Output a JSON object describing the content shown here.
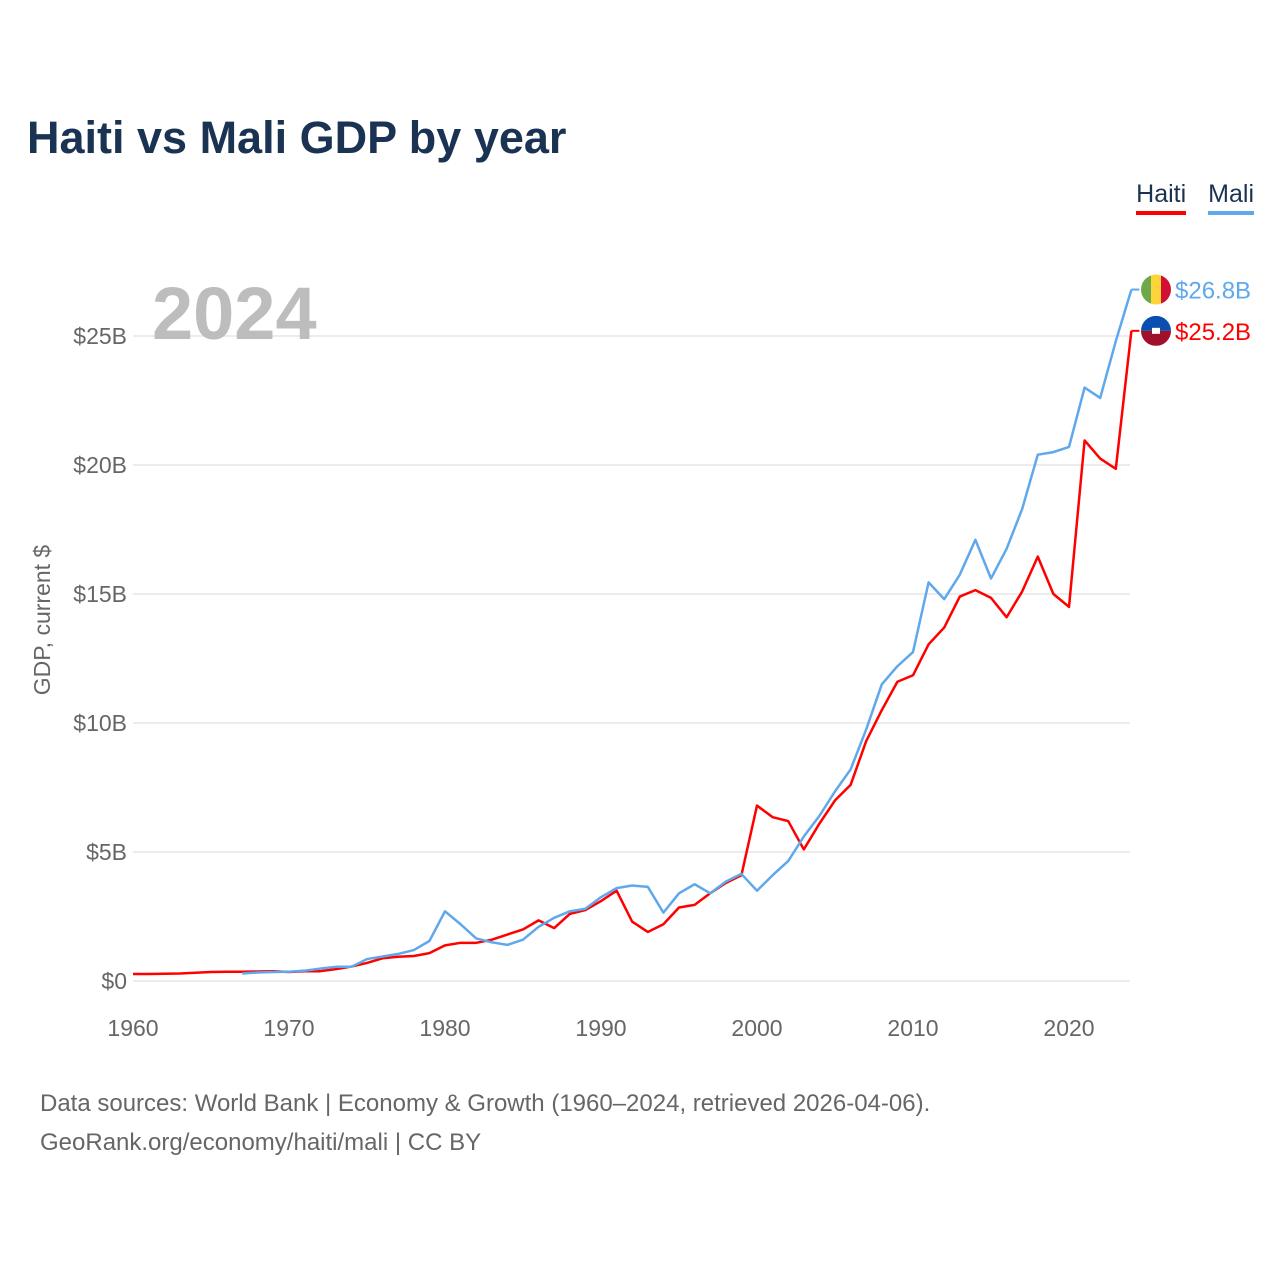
{
  "title": "Haiti vs Mali GDP by year",
  "year_label": "2024",
  "footer": {
    "line1": "Data sources: World Bank | Economy & Growth (1960–2024, retrieved 2026-04-06).",
    "line2": "GeoRank.org/economy/haiti/mali | CC BY"
  },
  "chart_data": {
    "type": "line",
    "title": "Haiti vs Mali GDP by year",
    "xlabel": "",
    "ylabel": "GDP, current $",
    "xlim": [
      1960,
      2024
    ],
    "ylim": [
      0,
      27
    ],
    "grid": true,
    "legend_placement": "top-right",
    "x_ticks": [
      1960,
      1970,
      1980,
      1990,
      2000,
      2010,
      2020
    ],
    "y_ticks": [
      {
        "v": 0,
        "label": "$0"
      },
      {
        "v": 5,
        "label": "$5B"
      },
      {
        "v": 10,
        "label": "$10B"
      },
      {
        "v": 15,
        "label": "$15B"
      },
      {
        "v": 20,
        "label": "$20B"
      },
      {
        "v": 25,
        "label": "$25B"
      }
    ],
    "series": [
      {
        "name": "Haiti",
        "color": "#ff0000",
        "flag": "haiti-flag",
        "end_label": "$25.2B",
        "start_year": 1960,
        "values": [
          0.27,
          0.27,
          0.28,
          0.29,
          0.32,
          0.35,
          0.36,
          0.36,
          0.37,
          0.38,
          0.35,
          0.38,
          0.38,
          0.46,
          0.56,
          0.7,
          0.88,
          0.94,
          0.97,
          1.08,
          1.38,
          1.48,
          1.48,
          1.6,
          1.8,
          2.0,
          2.35,
          2.05,
          2.6,
          2.75,
          3.1,
          3.5,
          2.3,
          1.9,
          2.2,
          2.85,
          2.95,
          3.4,
          3.8,
          4.1,
          6.8,
          6.35,
          6.2,
          5.1,
          6.1,
          7.0,
          7.6,
          9.3,
          10.5,
          11.6,
          11.85,
          13.05,
          13.7,
          14.9,
          15.15,
          14.85,
          14.1,
          15.1,
          16.45,
          15.0,
          14.5,
          20.95,
          20.25,
          19.85,
          25.2
        ]
      },
      {
        "name": "Mali",
        "color": "#5fa8ec",
        "flag": "mali-flag",
        "end_label": "$26.8B",
        "start_year": 1967,
        "values": [
          0.29,
          0.33,
          0.35,
          0.36,
          0.4,
          0.48,
          0.55,
          0.55,
          0.85,
          0.95,
          1.05,
          1.2,
          1.55,
          2.7,
          2.2,
          1.65,
          1.5,
          1.4,
          1.6,
          2.1,
          2.45,
          2.7,
          2.8,
          3.25,
          3.6,
          3.7,
          3.65,
          2.65,
          3.4,
          3.75,
          3.4,
          3.85,
          4.15,
          3.5,
          4.1,
          4.65,
          5.6,
          6.4,
          7.35,
          8.2,
          9.75,
          11.5,
          12.2,
          12.75,
          15.45,
          14.8,
          15.75,
          17.1,
          15.6,
          16.75,
          18.3,
          20.4,
          20.5,
          20.7,
          23.0,
          22.6,
          24.8,
          26.8
        ]
      }
    ]
  }
}
